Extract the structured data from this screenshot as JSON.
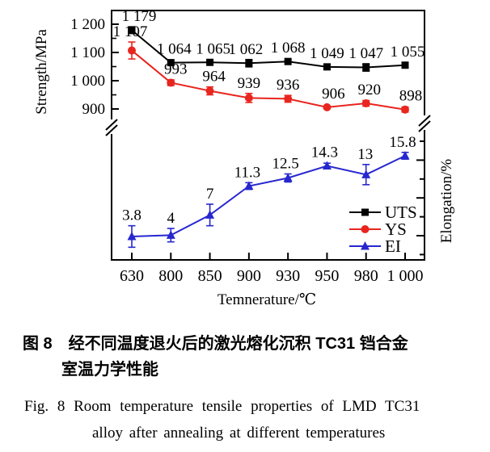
{
  "chart_data": {
    "type": "line",
    "x_categories": [
      "630",
      "800",
      "850",
      "900",
      "930",
      "950",
      "980",
      "1 000"
    ],
    "xlabel": "Temnerature/℃",
    "ylabel_left": "Strength/MPa",
    "ylabel_right": "Elongation/%",
    "axis_break": true,
    "strength_axis": {
      "major_ticks": [
        {
          "value": 900,
          "label": "900"
        },
        {
          "value": 1000,
          "label": "1 000"
        },
        {
          "value": 1100,
          "label": "1 100"
        },
        {
          "value": 1200,
          "label": "1 200"
        }
      ],
      "minor_ticks": [
        950,
        1050,
        1150
      ]
    },
    "elongation_axis": {
      "labels_shown": false
    },
    "series": [
      {
        "name": "UTS",
        "axis": "strength",
        "marker": "square",
        "color": "#000000",
        "values": [
          1179,
          1064,
          1065,
          1062,
          1068,
          1049,
          1047,
          1055
        ],
        "labels": [
          "1 179",
          "1 064",
          "1 065",
          "1 062",
          "1 068",
          "1 049",
          "1 047",
          "1 055"
        ],
        "errors": [
          12,
          6,
          6,
          13,
          6,
          8,
          13,
          6
        ]
      },
      {
        "name": "YS",
        "axis": "strength",
        "marker": "circle",
        "color": "#e8251e",
        "values": [
          1107,
          993,
          964,
          939,
          936,
          906,
          920,
          898
        ],
        "labels": [
          "1 107",
          "993",
          "964",
          "939",
          "936",
          "906",
          "920",
          "898"
        ],
        "errors": [
          30,
          10,
          14,
          16,
          12,
          6,
          10,
          9
        ]
      },
      {
        "name": "EI",
        "axis": "elongation",
        "marker": "triangle",
        "color": "#2727cf",
        "values": [
          3.8,
          4,
          7,
          11.3,
          12.5,
          14.3,
          13,
          15.8
        ],
        "labels": [
          "3.8",
          "4",
          "7",
          "11.3",
          "12.5",
          "14.3",
          "13",
          "15.8"
        ],
        "errors": [
          1.6,
          1.0,
          1.6,
          0.5,
          0.6,
          0.4,
          1.5,
          0.5
        ]
      }
    ],
    "legend": [
      "UTS",
      "YS",
      "EI"
    ]
  },
  "caption": {
    "zh_line1": "图 8　经不同温度退火后的激光熔化沉积 TC31 铛合金",
    "zh_line2": "室温力学性能",
    "en_line1": "Fig. 8   Room temperature tensile properties of LMD TC31",
    "en_line2": "alloy after annealing at different temperatures"
  }
}
